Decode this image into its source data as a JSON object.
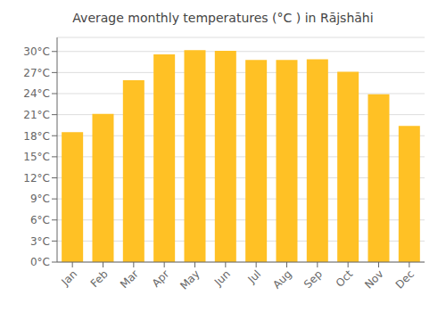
{
  "chart_data": {
    "type": "bar",
    "title": "Average monthly temperatures (°C ) in Rājshāhi",
    "categories": [
      "Jan",
      "Feb",
      "Mar",
      "Apr",
      "May",
      "Jun",
      "Jul",
      "Aug",
      "Sep",
      "Oct",
      "Nov",
      "Dec"
    ],
    "values": [
      18.5,
      21.1,
      25.9,
      29.6,
      30.2,
      30.1,
      28.8,
      28.8,
      28.9,
      27.1,
      23.9,
      19.4
    ],
    "color": "#FFC125",
    "ylim": [
      0,
      32
    ],
    "yticks": [
      {
        "value": 0,
        "label": "0°C"
      },
      {
        "value": 3,
        "label": "3°C"
      },
      {
        "value": 6,
        "label": "6°C"
      },
      {
        "value": 9,
        "label": "9°C"
      },
      {
        "value": 12,
        "label": "12°C"
      },
      {
        "value": 15,
        "label": "15°C"
      },
      {
        "value": 18,
        "label": "18°C"
      },
      {
        "value": 21,
        "label": "21°C"
      },
      {
        "value": 24,
        "label": "24°C"
      },
      {
        "value": 27,
        "label": "27°C"
      },
      {
        "value": 30,
        "label": "30°C"
      }
    ],
    "grid": true
  }
}
